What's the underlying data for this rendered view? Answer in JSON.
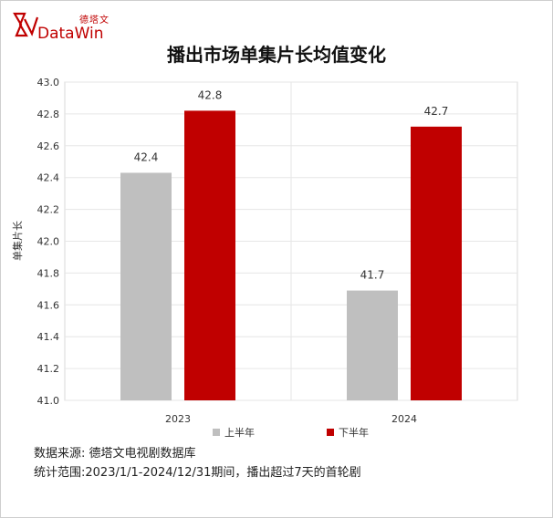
{
  "brand": {
    "name_cn": "德塔文",
    "name_en": "DataWin",
    "color": "#c00000"
  },
  "footer": {
    "source": "数据来源: 德塔文电视剧数据库",
    "scope": "统计范围:2023/1/1-2024/12/31期间，播出超过7天的首轮剧"
  },
  "chart_data": {
    "type": "bar",
    "title": "播出市场单集片长均值变化",
    "xlabel": "",
    "ylabel": "单集片长",
    "categories": [
      "2023",
      "2024"
    ],
    "series": [
      {
        "name": "上半年",
        "values": [
          42.43,
          41.69
        ],
        "labels": [
          "42.4",
          "41.7"
        ],
        "color": "#bfbfbf"
      },
      {
        "name": "下半年",
        "values": [
          42.82,
          42.72
        ],
        "labels": [
          "42.8",
          "42.7"
        ],
        "color": "#c00000"
      }
    ],
    "ylim": [
      41.0,
      43.0
    ],
    "yticks": [
      "41.0",
      "41.2",
      "41.4",
      "41.6",
      "41.8",
      "42.0",
      "42.2",
      "42.4",
      "42.6",
      "42.8",
      "43.0"
    ],
    "grid": true,
    "legend": "bottom"
  }
}
